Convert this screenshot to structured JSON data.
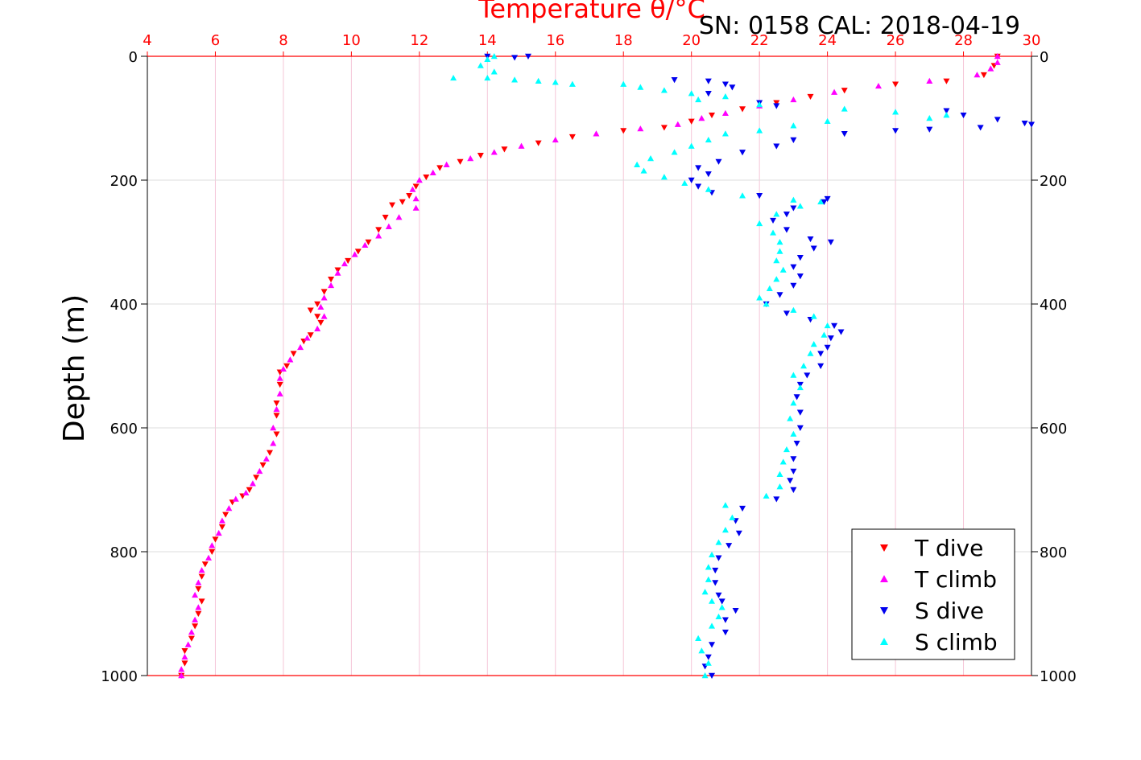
{
  "chart_data": {
    "type": "scatter",
    "title_top": "Temperature θ/°C",
    "title_right": "SN: 0158  CAL: 2018-04-19",
    "ylabel": "Depth (m)",
    "xlim": [
      4,
      30
    ],
    "ylim": [
      0,
      1000
    ],
    "y_inverted": true,
    "x_ticks": [
      "4",
      "6",
      "8",
      "10",
      "12",
      "14",
      "16",
      "18",
      "20",
      "22",
      "24",
      "26",
      "28",
      "30"
    ],
    "y_ticks": [
      "0",
      "200",
      "400",
      "600",
      "800",
      "1000"
    ],
    "grid": true,
    "legend_position": "bottom-right",
    "colors": {
      "t_dive": "#ff0000",
      "t_climb": "#ff00ff",
      "s_dive": "#0000ee",
      "s_climb": "#00ffff",
      "axis_top": "#ff0000",
      "grid": "#dddddd",
      "grid_vertical": "#f5c6d8"
    },
    "series": [
      {
        "name": "T dive",
        "marker": "triangle-down",
        "color": "#ff0000",
        "points": [
          [
            29.0,
            0
          ],
          [
            28.9,
            15
          ],
          [
            28.6,
            30
          ],
          [
            27.5,
            40
          ],
          [
            26.0,
            45
          ],
          [
            24.5,
            55
          ],
          [
            23.5,
            65
          ],
          [
            22.5,
            75
          ],
          [
            21.5,
            85
          ],
          [
            20.6,
            95
          ],
          [
            20.0,
            105
          ],
          [
            19.2,
            115
          ],
          [
            18.0,
            120
          ],
          [
            16.5,
            130
          ],
          [
            15.5,
            140
          ],
          [
            14.5,
            150
          ],
          [
            13.8,
            160
          ],
          [
            13.2,
            170
          ],
          [
            12.6,
            180
          ],
          [
            12.2,
            195
          ],
          [
            11.9,
            210
          ],
          [
            11.7,
            225
          ],
          [
            11.5,
            235
          ],
          [
            11.2,
            240
          ],
          [
            11.0,
            260
          ],
          [
            10.8,
            280
          ],
          [
            10.5,
            300
          ],
          [
            10.2,
            315
          ],
          [
            9.9,
            330
          ],
          [
            9.6,
            345
          ],
          [
            9.4,
            360
          ],
          [
            9.2,
            380
          ],
          [
            9.0,
            400
          ],
          [
            8.8,
            410
          ],
          [
            9.0,
            420
          ],
          [
            9.1,
            430
          ],
          [
            8.8,
            450
          ],
          [
            8.6,
            460
          ],
          [
            8.3,
            480
          ],
          [
            8.1,
            500
          ],
          [
            7.9,
            510
          ],
          [
            7.9,
            530
          ],
          [
            7.8,
            560
          ],
          [
            7.8,
            580
          ],
          [
            7.8,
            610
          ],
          [
            7.6,
            640
          ],
          [
            7.4,
            660
          ],
          [
            7.2,
            680
          ],
          [
            7.0,
            700
          ],
          [
            6.8,
            710
          ],
          [
            6.5,
            720
          ],
          [
            6.3,
            740
          ],
          [
            6.2,
            760
          ],
          [
            6.0,
            780
          ],
          [
            5.9,
            800
          ],
          [
            5.7,
            820
          ],
          [
            5.6,
            840
          ],
          [
            5.5,
            860
          ],
          [
            5.6,
            880
          ],
          [
            5.5,
            900
          ],
          [
            5.4,
            920
          ],
          [
            5.3,
            940
          ],
          [
            5.1,
            960
          ],
          [
            5.1,
            980
          ],
          [
            5.0,
            1000
          ]
        ]
      },
      {
        "name": "T climb",
        "marker": "triangle-up",
        "color": "#ff00ff",
        "points": [
          [
            29.0,
            0
          ],
          [
            29.0,
            10
          ],
          [
            28.8,
            20
          ],
          [
            28.4,
            30
          ],
          [
            27.0,
            40
          ],
          [
            25.5,
            48
          ],
          [
            24.2,
            58
          ],
          [
            23.0,
            70
          ],
          [
            22.0,
            80
          ],
          [
            21.0,
            92
          ],
          [
            20.3,
            100
          ],
          [
            19.6,
            110
          ],
          [
            18.5,
            117
          ],
          [
            17.2,
            125
          ],
          [
            16.0,
            135
          ],
          [
            15.0,
            145
          ],
          [
            14.2,
            155
          ],
          [
            13.5,
            165
          ],
          [
            12.8,
            175
          ],
          [
            12.4,
            188
          ],
          [
            12.0,
            200
          ],
          [
            11.8,
            215
          ],
          [
            11.9,
            230
          ],
          [
            11.9,
            245
          ],
          [
            11.4,
            260
          ],
          [
            11.1,
            275
          ],
          [
            10.8,
            290
          ],
          [
            10.4,
            305
          ],
          [
            10.1,
            320
          ],
          [
            9.8,
            335
          ],
          [
            9.6,
            350
          ],
          [
            9.4,
            370
          ],
          [
            9.2,
            390
          ],
          [
            9.1,
            405
          ],
          [
            9.2,
            420
          ],
          [
            9.0,
            440
          ],
          [
            8.7,
            455
          ],
          [
            8.5,
            470
          ],
          [
            8.2,
            490
          ],
          [
            8.0,
            505
          ],
          [
            7.9,
            520
          ],
          [
            7.9,
            545
          ],
          [
            7.8,
            570
          ],
          [
            7.7,
            600
          ],
          [
            7.7,
            625
          ],
          [
            7.5,
            650
          ],
          [
            7.3,
            670
          ],
          [
            7.1,
            690
          ],
          [
            6.9,
            705
          ],
          [
            6.6,
            715
          ],
          [
            6.4,
            730
          ],
          [
            6.2,
            750
          ],
          [
            6.1,
            770
          ],
          [
            5.9,
            790
          ],
          [
            5.8,
            810
          ],
          [
            5.6,
            830
          ],
          [
            5.5,
            850
          ],
          [
            5.4,
            870
          ],
          [
            5.5,
            890
          ],
          [
            5.4,
            910
          ],
          [
            5.3,
            930
          ],
          [
            5.2,
            950
          ],
          [
            5.1,
            970
          ],
          [
            5.0,
            990
          ],
          [
            5.0,
            1000
          ]
        ]
      },
      {
        "name": "S dive",
        "marker": "triangle-down",
        "color": "#0000ee",
        "points": [
          [
            14.0,
            0
          ],
          [
            15.2,
            0
          ],
          [
            14.8,
            2
          ],
          [
            19.5,
            38
          ],
          [
            20.5,
            40
          ],
          [
            21.0,
            45
          ],
          [
            21.2,
            50
          ],
          [
            20.5,
            60
          ],
          [
            22.0,
            75
          ],
          [
            22.5,
            80
          ],
          [
            27.5,
            88
          ],
          [
            28.0,
            95
          ],
          [
            29.0,
            102
          ],
          [
            29.8,
            108
          ],
          [
            30.0,
            110
          ],
          [
            28.5,
            115
          ],
          [
            27.0,
            118
          ],
          [
            26.0,
            120
          ],
          [
            24.5,
            125
          ],
          [
            23.0,
            135
          ],
          [
            22.5,
            145
          ],
          [
            21.5,
            155
          ],
          [
            20.8,
            170
          ],
          [
            20.2,
            180
          ],
          [
            20.5,
            190
          ],
          [
            20.0,
            200
          ],
          [
            20.2,
            210
          ],
          [
            20.6,
            220
          ],
          [
            22.0,
            225
          ],
          [
            24.0,
            230
          ],
          [
            23.9,
            235
          ],
          [
            23.0,
            245
          ],
          [
            22.8,
            255
          ],
          [
            22.4,
            265
          ],
          [
            22.8,
            280
          ],
          [
            23.5,
            295
          ],
          [
            24.1,
            300
          ],
          [
            23.6,
            310
          ],
          [
            23.2,
            325
          ],
          [
            23.0,
            340
          ],
          [
            23.2,
            355
          ],
          [
            23.0,
            370
          ],
          [
            22.6,
            385
          ],
          [
            22.2,
            400
          ],
          [
            22.8,
            415
          ],
          [
            23.5,
            425
          ],
          [
            24.2,
            435
          ],
          [
            24.4,
            445
          ],
          [
            24.1,
            455
          ],
          [
            24.0,
            470
          ],
          [
            23.8,
            480
          ],
          [
            23.8,
            500
          ],
          [
            23.4,
            515
          ],
          [
            23.2,
            530
          ],
          [
            23.1,
            550
          ],
          [
            23.2,
            575
          ],
          [
            23.2,
            600
          ],
          [
            23.1,
            625
          ],
          [
            23.0,
            650
          ],
          [
            23.0,
            670
          ],
          [
            22.9,
            685
          ],
          [
            23.0,
            700
          ],
          [
            22.5,
            715
          ],
          [
            21.5,
            730
          ],
          [
            21.3,
            750
          ],
          [
            21.4,
            770
          ],
          [
            21.1,
            790
          ],
          [
            20.8,
            810
          ],
          [
            20.7,
            830
          ],
          [
            20.7,
            850
          ],
          [
            20.8,
            870
          ],
          [
            20.9,
            880
          ],
          [
            21.3,
            895
          ],
          [
            21.0,
            910
          ],
          [
            21.0,
            930
          ],
          [
            20.6,
            950
          ],
          [
            20.5,
            970
          ],
          [
            20.4,
            985
          ],
          [
            20.6,
            1000
          ]
        ]
      },
      {
        "name": "S climb",
        "marker": "triangle-up",
        "color": "#00ffff",
        "points": [
          [
            14.2,
            0
          ],
          [
            14.0,
            5
          ],
          [
            13.8,
            15
          ],
          [
            14.2,
            25
          ],
          [
            13.0,
            35
          ],
          [
            14.0,
            35
          ],
          [
            14.8,
            38
          ],
          [
            15.5,
            40
          ],
          [
            16.0,
            42
          ],
          [
            16.5,
            45
          ],
          [
            18.0,
            45
          ],
          [
            18.5,
            50
          ],
          [
            19.2,
            55
          ],
          [
            20.0,
            60
          ],
          [
            21.0,
            65
          ],
          [
            20.2,
            70
          ],
          [
            22.0,
            78
          ],
          [
            24.5,
            85
          ],
          [
            26.0,
            90
          ],
          [
            27.5,
            95
          ],
          [
            27.0,
            100
          ],
          [
            24.0,
            105
          ],
          [
            23.0,
            112
          ],
          [
            22.0,
            120
          ],
          [
            21.0,
            125
          ],
          [
            20.5,
            135
          ],
          [
            20.0,
            145
          ],
          [
            19.5,
            155
          ],
          [
            18.8,
            165
          ],
          [
            18.4,
            175
          ],
          [
            18.6,
            185
          ],
          [
            19.2,
            195
          ],
          [
            19.8,
            205
          ],
          [
            20.5,
            215
          ],
          [
            21.5,
            225
          ],
          [
            23.0,
            232
          ],
          [
            23.8,
            235
          ],
          [
            23.2,
            242
          ],
          [
            22.5,
            255
          ],
          [
            22.0,
            270
          ],
          [
            22.4,
            285
          ],
          [
            22.6,
            300
          ],
          [
            22.6,
            315
          ],
          [
            22.5,
            330
          ],
          [
            22.7,
            345
          ],
          [
            22.5,
            360
          ],
          [
            22.3,
            375
          ],
          [
            22.0,
            390
          ],
          [
            22.2,
            400
          ],
          [
            23.0,
            410
          ],
          [
            23.6,
            420
          ],
          [
            24.0,
            435
          ],
          [
            23.9,
            450
          ],
          [
            23.6,
            465
          ],
          [
            23.5,
            480
          ],
          [
            23.3,
            500
          ],
          [
            23.0,
            515
          ],
          [
            23.2,
            535
          ],
          [
            23.0,
            560
          ],
          [
            22.9,
            585
          ],
          [
            23.0,
            610
          ],
          [
            22.8,
            635
          ],
          [
            22.7,
            655
          ],
          [
            22.6,
            675
          ],
          [
            22.6,
            695
          ],
          [
            22.2,
            710
          ],
          [
            21.0,
            725
          ],
          [
            21.2,
            745
          ],
          [
            21.0,
            765
          ],
          [
            20.8,
            785
          ],
          [
            20.6,
            805
          ],
          [
            20.5,
            825
          ],
          [
            20.5,
            845
          ],
          [
            20.4,
            865
          ],
          [
            20.6,
            880
          ],
          [
            20.9,
            890
          ],
          [
            20.8,
            905
          ],
          [
            20.6,
            920
          ],
          [
            20.2,
            940
          ],
          [
            20.3,
            960
          ],
          [
            20.5,
            980
          ],
          [
            20.4,
            1000
          ]
        ]
      }
    ]
  }
}
